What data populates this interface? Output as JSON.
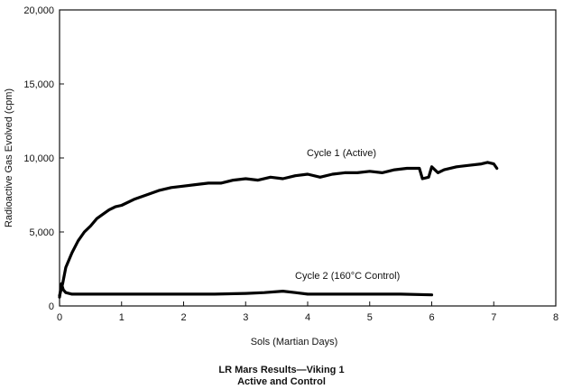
{
  "chart_data": {
    "type": "line",
    "title": "",
    "xlabel": "Sols (Martian Days)",
    "ylabel": "Radioactive Gas Evolved (cpm)",
    "xlim": [
      0,
      8
    ],
    "ylim": [
      0,
      20000
    ],
    "x_ticks": [
      "0",
      "1",
      "2",
      "3",
      "4",
      "5",
      "6",
      "7",
      "8"
    ],
    "y_ticks": [
      "0",
      "5,000",
      "10,000",
      "15,000",
      "20,000"
    ],
    "grid": false,
    "legend": "none",
    "series": [
      {
        "name": "Cycle 1 (Active)",
        "color": "#000000",
        "x": [
          0,
          0.05,
          0.1,
          0.2,
          0.3,
          0.4,
          0.5,
          0.6,
          0.7,
          0.8,
          0.9,
          1.0,
          1.2,
          1.4,
          1.6,
          1.8,
          2.0,
          2.2,
          2.4,
          2.6,
          2.8,
          3.0,
          3.2,
          3.4,
          3.6,
          3.8,
          4.0,
          4.2,
          4.4,
          4.6,
          4.8,
          5.0,
          5.2,
          5.4,
          5.6,
          5.8,
          5.85,
          5.95,
          6.0,
          6.1,
          6.2,
          6.4,
          6.6,
          6.8,
          6.9,
          7.0,
          7.05
        ],
        "y": [
          700,
          1500,
          2600,
          3600,
          4400,
          5000,
          5400,
          5900,
          6200,
          6500,
          6700,
          6800,
          7200,
          7500,
          7800,
          8000,
          8100,
          8200,
          8300,
          8300,
          8500,
          8600,
          8500,
          8700,
          8600,
          8800,
          8900,
          8700,
          8900,
          9000,
          9000,
          9100,
          9000,
          9200,
          9300,
          9300,
          8600,
          8700,
          9400,
          9000,
          9200,
          9400,
          9500,
          9600,
          9700,
          9600,
          9300
        ]
      },
      {
        "name": "Cycle 2 (160°C Control)",
        "color": "#000000",
        "x": [
          0,
          0.03,
          0.06,
          0.1,
          0.2,
          0.5,
          1.0,
          1.5,
          2.0,
          2.5,
          3.0,
          3.3,
          3.6,
          3.8,
          4.0,
          4.5,
          5.0,
          5.5,
          6.0
        ],
        "y": [
          600,
          1500,
          1100,
          900,
          800,
          800,
          800,
          800,
          800,
          800,
          850,
          900,
          1000,
          900,
          800,
          800,
          800,
          800,
          750
        ]
      }
    ],
    "annotations": [
      "Cycle 1 (Active)",
      "Cycle 2 (160°C Control)"
    ]
  },
  "caption": {
    "line1": "LR Mars Results—Viking 1",
    "line2": "Active and Control"
  }
}
